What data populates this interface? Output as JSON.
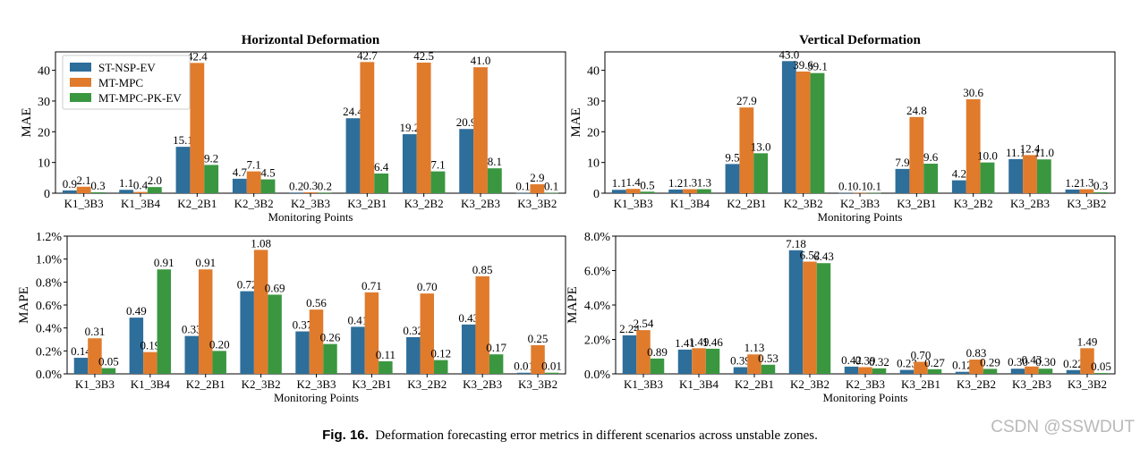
{
  "figure": {
    "colors": {
      "s0": "#2e6e9a",
      "s1": "#e07b2c",
      "s2": "#3a9740"
    },
    "legend": [
      "ST-NSP-EV",
      "MT-MPC",
      "MT-MPC-PK-EV"
    ],
    "caption_label": "Fig. 16.",
    "caption_text": "Deformation forecasting error metrics in different scenarios across unstable zones.",
    "watermark": "CSDN @SSWDUT"
  },
  "chart_data": [
    {
      "type": "bar",
      "title": "Horizontal Deformation",
      "xlabel": "Monitoring Points",
      "ylabel": "MAE",
      "ylim": [
        0,
        46
      ],
      "yticks": [
        0,
        10,
        20,
        30,
        40
      ],
      "ytick_labels": [
        "0",
        "10",
        "20",
        "30",
        "40"
      ],
      "categories": [
        "K1_3B3",
        "K1_3B4",
        "K2_2B1",
        "K2_3B2",
        "K2_3B3",
        "K3_2B1",
        "K3_2B2",
        "K3_2B3",
        "K3_3B2"
      ],
      "series": [
        {
          "name": "ST-NSP-EV",
          "values": [
            0.9,
            1.1,
            15.1,
            4.7,
            0.2,
            24.4,
            19.2,
            20.9,
            0.1
          ],
          "labels": [
            "0.9",
            "1.1",
            "15.1",
            "4.7",
            "0.2",
            "24.4",
            "19.2",
            "20.9",
            "0.1"
          ]
        },
        {
          "name": "MT-MPC",
          "values": [
            2.1,
            0.4,
            42.4,
            7.1,
            0.3,
            42.7,
            42.5,
            41.0,
            2.9
          ],
          "labels": [
            "2.1",
            "0.4",
            "42.4",
            "7.1",
            "0.3",
            "42.7",
            "42.5",
            "41.0",
            "2.9"
          ]
        },
        {
          "name": "MT-MPC-PK-EV",
          "values": [
            0.3,
            2.0,
            9.2,
            4.5,
            0.2,
            6.4,
            7.1,
            8.1,
            0.1
          ],
          "labels": [
            "0.3",
            "2.0",
            "9.2",
            "4.5",
            "0.2",
            "6.4",
            "7.1",
            "8.1",
            "0.1"
          ]
        }
      ],
      "legend": "top-left"
    },
    {
      "type": "bar",
      "title": "Vertical Deformation",
      "xlabel": "Monitoring Points",
      "ylabel": "MAE",
      "ylim": [
        0,
        46
      ],
      "yticks": [
        0,
        10,
        20,
        30,
        40
      ],
      "ytick_labels": [
        "0",
        "10",
        "20",
        "30",
        "40"
      ],
      "categories": [
        "K1_3B3",
        "K1_3B4",
        "K2_2B1",
        "K2_3B2",
        "K2_3B3",
        "K3_2B1",
        "K3_2B2",
        "K3_2B3",
        "K3_3B2"
      ],
      "series": [
        {
          "name": "ST-NSP-EV",
          "values": [
            1.1,
            1.2,
            9.5,
            43.0,
            0.1,
            7.9,
            4.2,
            11.1,
            1.2
          ],
          "labels": [
            "1.1",
            "1.2",
            "9.5",
            "43.0",
            "0.1",
            "7.9",
            "4.2",
            "11.1",
            "1.2"
          ]
        },
        {
          "name": "MT-MPC",
          "values": [
            1.4,
            1.3,
            27.9,
            39.6,
            0.1,
            24.8,
            30.6,
            12.4,
            1.3
          ],
          "labels": [
            "1.4",
            "1.3",
            "27.9",
            "39.6",
            "0.1",
            "24.8",
            "30.6",
            "12.4",
            "1.3"
          ]
        },
        {
          "name": "MT-MPC-PK-EV",
          "values": [
            0.5,
            1.3,
            13.0,
            39.1,
            0.1,
            9.6,
            10.0,
            11.0,
            0.3
          ],
          "labels": [
            "0.5",
            "1.3",
            "13.0",
            "39.1",
            "0.1",
            "9.6",
            "10.0",
            "11.0",
            "0.3"
          ]
        }
      ]
    },
    {
      "type": "bar",
      "title": "",
      "xlabel": "Monitoring Points",
      "ylabel": "MAPE",
      "ylim": [
        0,
        1.2
      ],
      "yticks": [
        0,
        0.2,
        0.4,
        0.6,
        0.8,
        1.0,
        1.2
      ],
      "ytick_labels": [
        "0.0%",
        "0.2%",
        "0.4%",
        "0.6%",
        "0.8%",
        "1.0%",
        "1.2%"
      ],
      "categories": [
        "K1_3B3",
        "K1_3B4",
        "K2_2B1",
        "K2_3B2",
        "K2_3B3",
        "K3_2B1",
        "K3_2B2",
        "K3_2B3",
        "K3_3B2"
      ],
      "series": [
        {
          "name": "ST-NSP-EV",
          "values": [
            0.14,
            0.49,
            0.33,
            0.72,
            0.37,
            0.41,
            0.32,
            0.43,
            0.01
          ],
          "labels": [
            "0.14",
            "0.49",
            "0.33",
            "0.72",
            "0.37",
            "0.41",
            "0.32",
            "0.43",
            "0.01"
          ]
        },
        {
          "name": "MT-MPC",
          "values": [
            0.31,
            0.19,
            0.91,
            1.08,
            0.56,
            0.71,
            0.7,
            0.85,
            0.25
          ],
          "labels": [
            "0.31",
            "0.19",
            "0.91",
            "1.08",
            "0.56",
            "0.71",
            "0.70",
            "0.85",
            "0.25"
          ]
        },
        {
          "name": "MT-MPC-PK-EV",
          "values": [
            0.05,
            0.91,
            0.2,
            0.69,
            0.26,
            0.11,
            0.12,
            0.17,
            0.01
          ],
          "labels": [
            "0.05",
            "0.91",
            "0.20",
            "0.69",
            "0.26",
            "0.11",
            "0.12",
            "0.17",
            "0.01"
          ]
        }
      ]
    },
    {
      "type": "bar",
      "title": "",
      "xlabel": "Monitoring Points",
      "ylabel": "MAPE",
      "ylim": [
        0,
        8.0
      ],
      "yticks": [
        0,
        2,
        4,
        6,
        8
      ],
      "ytick_labels": [
        "0.0%",
        "2.0%",
        "4.0%",
        "6.0%",
        "8.0%"
      ],
      "categories": [
        "K1_3B3",
        "K1_3B4",
        "K2_2B1",
        "K2_3B2",
        "K2_3B3",
        "K3_2B1",
        "K3_2B2",
        "K3_2B3",
        "K3_3B2"
      ],
      "series": [
        {
          "name": "ST-NSP-EV",
          "values": [
            2.24,
            1.41,
            0.39,
            7.18,
            0.42,
            0.23,
            0.12,
            0.3,
            0.22
          ],
          "labels": [
            "2.24",
            "1.41",
            "0.39",
            "7.18",
            "0.42",
            "0.23",
            "0.12",
            "0.30",
            "0.22"
          ]
        },
        {
          "name": "MT-MPC",
          "values": [
            2.54,
            1.49,
            1.13,
            6.52,
            0.39,
            0.7,
            0.83,
            0.43,
            1.49
          ],
          "labels": [
            "2.54",
            "1.49",
            "1.13",
            "6.52",
            "0.39",
            "0.70",
            "0.83",
            "0.43",
            "1.49"
          ]
        },
        {
          "name": "MT-MPC-PK-EV",
          "values": [
            0.89,
            1.46,
            0.53,
            6.43,
            0.32,
            0.27,
            0.29,
            0.3,
            0.05
          ],
          "labels": [
            "0.89",
            "1.46",
            "0.53",
            "6.43",
            "0.32",
            "0.27",
            "0.29",
            "0.30",
            "0.05"
          ]
        }
      ]
    }
  ]
}
